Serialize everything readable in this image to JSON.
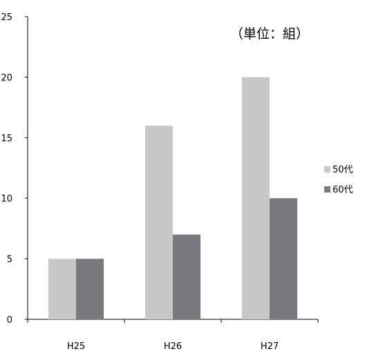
{
  "chart_data": {
    "type": "bar",
    "title": "",
    "xlabel": "",
    "ylabel": "",
    "unit_note": "（単位：組）",
    "categories": [
      "H25",
      "H26",
      "H27"
    ],
    "series": [
      {
        "name": "50代",
        "values": [
          5,
          16,
          20
        ],
        "color": "#c8c8c8"
      },
      {
        "name": "60代",
        "values": [
          5,
          7,
          10
        ],
        "color": "#7a7a7e"
      }
    ],
    "ylim": [
      0,
      25
    ],
    "yticks": [
      0,
      5,
      10,
      15,
      20,
      25
    ],
    "grid": false,
    "legend_position": "right"
  }
}
